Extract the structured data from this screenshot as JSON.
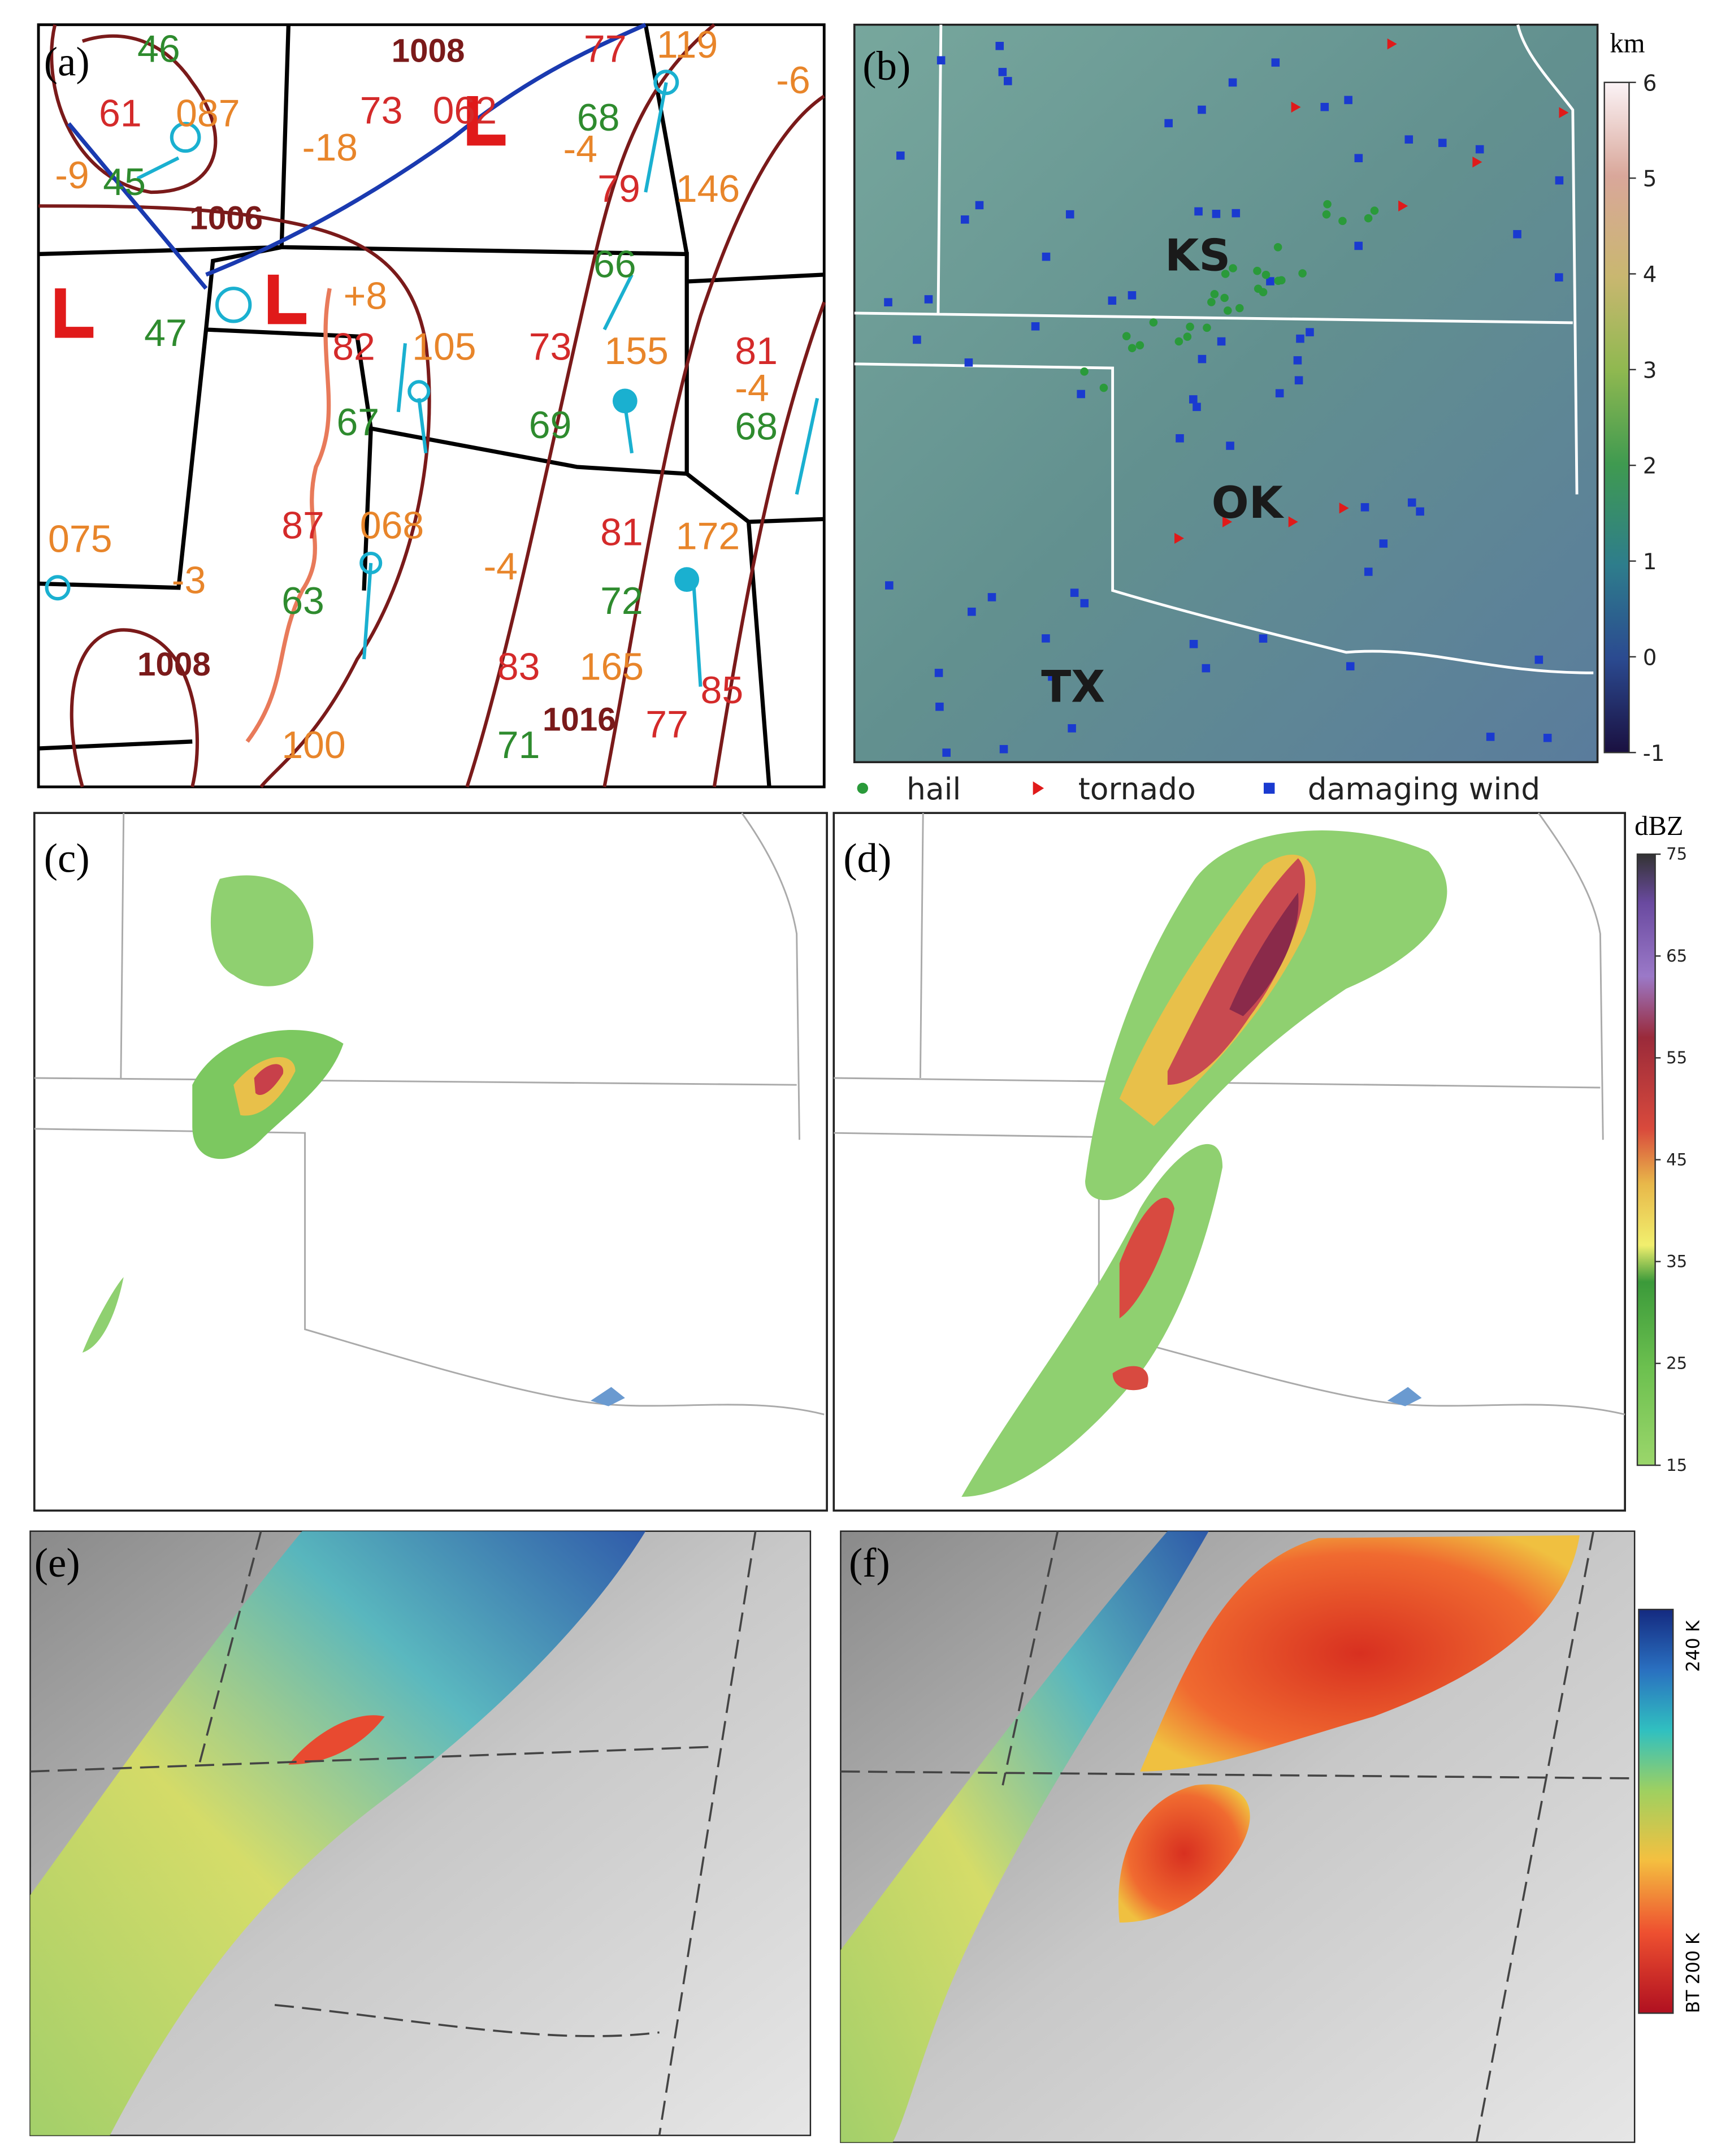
{
  "panel_a": {
    "label": "(a)",
    "station_labels": [
      "46",
      "1008",
      "77",
      "119",
      "-6",
      "61",
      "087",
      "73",
      "062",
      "68",
      "-9",
      "45",
      "-18",
      "-4",
      "79",
      "146",
      "1006",
      "66",
      "+8",
      "47",
      "82",
      "105",
      "73",
      "155",
      "81",
      "-4",
      "67",
      "69",
      "68",
      "075",
      "-3",
      "87",
      "068",
      "-4",
      "81",
      "172",
      "63",
      "72",
      "1008",
      "83",
      "165",
      "85",
      "1016",
      "77",
      "71",
      "100"
    ]
  },
  "panel_b": {
    "label": "(b)",
    "state_labels": [
      "KS",
      "OK",
      "TX"
    ],
    "colorbar": {
      "title": "km",
      "lim": [
        -1,
        6
      ],
      "ticks": [
        -1,
        0,
        1,
        2,
        3,
        4,
        5,
        6
      ]
    },
    "legend": [
      "hail",
      "tornado",
      "damaging wind"
    ]
  },
  "panel_c": {
    "label": "(c)"
  },
  "panel_d": {
    "label": "(d)",
    "colorbar": {
      "title": "dBZ",
      "lim": [
        15,
        75
      ],
      "ticks": [
        15,
        25,
        35,
        45,
        55,
        65,
        75
      ]
    }
  },
  "panel_e": {
    "label": "(e)"
  },
  "panel_f": {
    "label": "(f)",
    "colorbar": {
      "top_label": "240 K",
      "bottom_label": "BT 200 K"
    }
  }
}
